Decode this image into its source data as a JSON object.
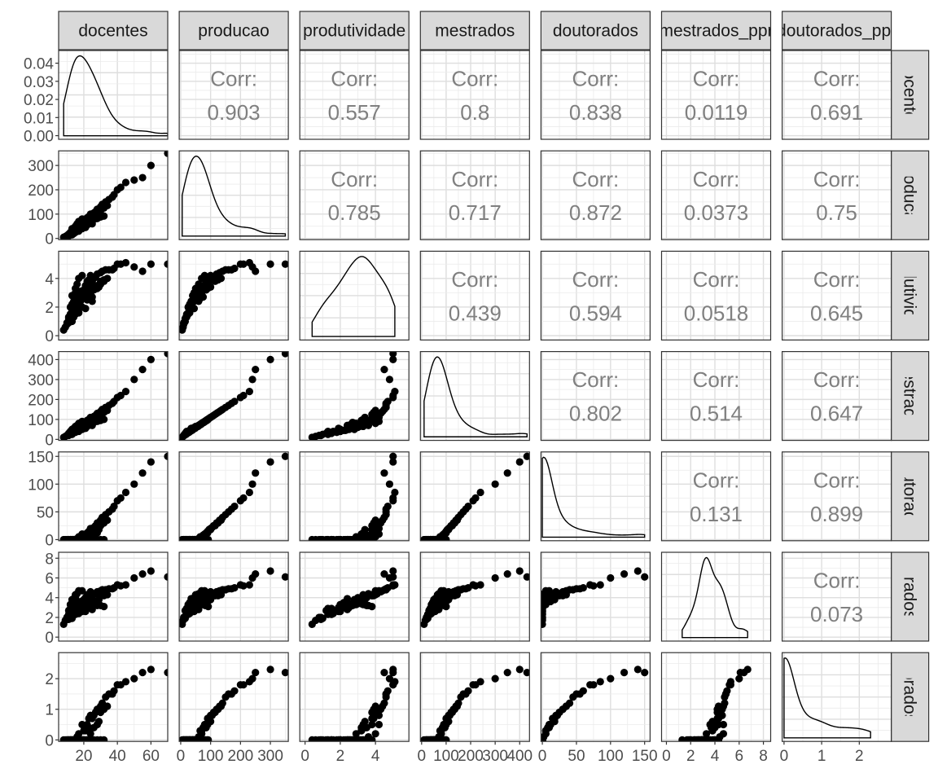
{
  "chart_data": {
    "type": "scatter-matrix",
    "variables": [
      "docentes",
      "producao",
      "produtividade",
      "mestrados",
      "doutorados",
      "mestrados_ppr",
      "doutorados_ppr"
    ],
    "corr_label": "Corr:",
    "correlations": [
      {
        "row": 0,
        "col": 1,
        "value": "0.903"
      },
      {
        "row": 0,
        "col": 2,
        "value": "0.557"
      },
      {
        "row": 0,
        "col": 3,
        "value": "0.8"
      },
      {
        "row": 0,
        "col": 4,
        "value": "0.838"
      },
      {
        "row": 0,
        "col": 5,
        "value": "0.0119"
      },
      {
        "row": 0,
        "col": 6,
        "value": "0.691"
      },
      {
        "row": 1,
        "col": 2,
        "value": "0.785"
      },
      {
        "row": 1,
        "col": 3,
        "value": "0.717"
      },
      {
        "row": 1,
        "col": 4,
        "value": "0.872"
      },
      {
        "row": 1,
        "col": 5,
        "value": "0.0373"
      },
      {
        "row": 1,
        "col": 6,
        "value": "0.75"
      },
      {
        "row": 2,
        "col": 3,
        "value": "0.439"
      },
      {
        "row": 2,
        "col": 4,
        "value": "0.594"
      },
      {
        "row": 2,
        "col": 5,
        "value": "0.0518"
      },
      {
        "row": 2,
        "col": 6,
        "value": "0.645"
      },
      {
        "row": 3,
        "col": 4,
        "value": "0.802"
      },
      {
        "row": 3,
        "col": 5,
        "value": "0.514"
      },
      {
        "row": 3,
        "col": 6,
        "value": "0.647"
      },
      {
        "row": 4,
        "col": 5,
        "value": "0.131"
      },
      {
        "row": 4,
        "col": 6,
        "value": "0.899"
      },
      {
        "row": 5,
        "col": 6,
        "value": "0.073"
      }
    ],
    "x_ticks": [
      [
        20,
        40,
        60
      ],
      [
        0,
        100,
        200,
        300
      ],
      [
        0,
        2,
        4
      ],
      [
        0,
        100,
        200,
        300,
        400
      ],
      [
        0,
        50,
        100,
        150
      ],
      [
        0,
        2,
        4,
        6,
        8
      ],
      [
        0,
        1,
        2
      ]
    ],
    "x_tick_labels": [
      [
        "20",
        "40",
        "60"
      ],
      [
        "0",
        "100",
        "200",
        "300"
      ],
      [
        "0",
        "2",
        "4"
      ],
      [
        "0",
        "100",
        "200",
        "300",
        "400"
      ],
      [
        "0",
        "50",
        "100",
        "150"
      ],
      [
        "0",
        "2",
        "4",
        "6",
        "8"
      ],
      [
        "0",
        "1",
        "2"
      ]
    ],
    "x_ranges": [
      [
        5,
        70
      ],
      [
        -5,
        360
      ],
      [
        -0.3,
        5.9
      ],
      [
        -5,
        440
      ],
      [
        -2,
        158
      ],
      [
        -0.4,
        8.6
      ],
      [
        -0.05,
        2.85
      ]
    ],
    "y_ticks": [
      [
        0,
        0.01,
        0.02,
        0.03,
        0.04
      ],
      [
        0,
        100,
        200,
        300
      ],
      [
        0,
        2,
        4
      ],
      [
        0,
        100,
        200,
        300,
        400
      ],
      [
        0,
        50,
        100,
        150
      ],
      [
        0,
        2,
        4,
        6,
        8
      ],
      [
        0,
        1,
        2
      ]
    ],
    "y_tick_labels": [
      [
        "0.00",
        "0.01",
        "0.02",
        "0.03",
        "0.04"
      ],
      [
        "0",
        "100",
        "200",
        "300"
      ],
      [
        "0",
        "2",
        "4"
      ],
      [
        "0",
        "100",
        "200",
        "300",
        "400"
      ],
      [
        "0",
        "50",
        "100",
        "150"
      ],
      [
        "0",
        "2",
        "4",
        "6",
        "8"
      ],
      [
        "0",
        "1",
        "2"
      ]
    ],
    "y_ranges": [
      [
        -0.002,
        0.047
      ],
      [
        -5,
        360
      ],
      [
        -0.3,
        5.9
      ],
      [
        -5,
        440
      ],
      [
        -2,
        158
      ],
      [
        -0.4,
        8.6
      ],
      [
        -0.05,
        2.85
      ]
    ],
    "data": {
      "docentes": [
        10,
        11,
        12,
        12,
        13,
        13,
        14,
        14,
        15,
        15,
        15,
        16,
        16,
        17,
        17,
        18,
        18,
        19,
        19,
        20,
        20,
        21,
        21,
        22,
        22,
        23,
        23,
        24,
        24,
        25,
        25,
        26,
        26,
        27,
        28,
        28,
        29,
        30,
        30,
        31,
        32,
        33,
        34,
        35,
        37,
        38,
        40,
        42,
        45,
        50,
        55,
        60,
        70,
        8,
        9,
        10,
        11,
        12,
        13,
        14,
        15,
        16,
        17,
        18,
        19,
        20,
        22,
        24,
        26,
        28,
        30,
        32,
        25,
        23,
        21,
        19,
        17,
        15,
        13,
        11
      ],
      "producao": [
        10,
        15,
        20,
        25,
        30,
        40,
        20,
        35,
        45,
        30,
        50,
        40,
        60,
        35,
        70,
        45,
        55,
        80,
        50,
        65,
        60,
        75,
        70,
        85,
        55,
        90,
        80,
        100,
        70,
        95,
        60,
        105,
        85,
        110,
        90,
        120,
        100,
        130,
        115,
        140,
        125,
        150,
        135,
        160,
        170,
        180,
        200,
        210,
        230,
        240,
        250,
        300,
        350,
        5,
        8,
        12,
        18,
        22,
        28,
        32,
        38,
        42,
        48,
        52,
        58,
        62,
        68,
        72,
        78,
        82,
        88,
        92,
        75,
        65,
        45,
        40,
        30,
        25,
        15,
        10
      ],
      "produtividade": [
        0.8,
        1.2,
        1.5,
        2.0,
        2.2,
        2.8,
        1.3,
        2.4,
        3.0,
        1.9,
        3.3,
        2.5,
        3.6,
        2.0,
        4.0,
        2.4,
        3.1,
        4.2,
        2.6,
        3.2,
        2.9,
        3.5,
        3.2,
        3.8,
        2.5,
        3.9,
        3.4,
        4.2,
        2.9,
        3.8,
        2.4,
        4.0,
        3.2,
        4.1,
        3.3,
        4.3,
        3.4,
        4.4,
        3.8,
        4.5,
        3.9,
        4.6,
        4.0,
        4.6,
        4.6,
        4.7,
        5.0,
        5.0,
        5.1,
        4.8,
        4.5,
        5.0,
        5.0,
        0.4,
        0.6,
        0.9,
        1.3,
        1.5,
        1.8,
        2.0,
        2.3,
        2.5,
        2.7,
        2.8,
        3.0,
        3.1,
        3.2,
        3.3,
        3.4,
        3.5,
        3.6,
        3.8,
        2.7,
        2.6,
        1.9,
        2.0,
        1.6,
        1.5,
        1.0,
        0.9
      ],
      "mestrados": [
        20,
        30,
        35,
        40,
        45,
        50,
        40,
        55,
        60,
        45,
        65,
        55,
        70,
        50,
        80,
        55,
        65,
        90,
        60,
        75,
        70,
        85,
        80,
        95,
        65,
        100,
        90,
        110,
        80,
        105,
        70,
        115,
        95,
        120,
        100,
        130,
        110,
        140,
        125,
        150,
        135,
        160,
        145,
        170,
        180,
        190,
        210,
        220,
        240,
        300,
        350,
        400,
        430,
        10,
        15,
        20,
        25,
        30,
        35,
        40,
        45,
        50,
        55,
        60,
        65,
        70,
        75,
        80,
        85,
        90,
        95,
        100,
        85,
        75,
        55,
        50,
        40,
        35,
        25,
        20
      ],
      "doutorados": [
        0,
        0,
        0,
        0,
        0,
        0,
        0,
        0,
        0,
        0,
        0,
        0,
        2,
        0,
        5,
        0,
        0,
        10,
        0,
        5,
        0,
        8,
        5,
        12,
        0,
        15,
        8,
        20,
        5,
        18,
        0,
        22,
        10,
        25,
        12,
        30,
        18,
        35,
        25,
        40,
        30,
        45,
        35,
        50,
        55,
        60,
        70,
        75,
        85,
        100,
        120,
        140,
        150,
        0,
        0,
        0,
        0,
        0,
        0,
        0,
        0,
        0,
        0,
        0,
        0,
        0,
        0,
        0,
        0,
        0,
        0,
        0,
        0,
        0,
        0,
        0,
        0,
        0,
        0,
        0
      ],
      "mestrados_ppr": [
        2.0,
        2.7,
        2.9,
        3.3,
        3.5,
        3.8,
        2.9,
        3.9,
        4.0,
        3.0,
        4.3,
        3.4,
        4.4,
        2.9,
        4.7,
        3.1,
        3.6,
        4.7,
        3.2,
        3.8,
        3.5,
        4.0,
        3.8,
        4.3,
        3.0,
        4.3,
        3.9,
        4.6,
        3.3,
        4.2,
        2.8,
        4.4,
        3.7,
        4.4,
        3.6,
        4.6,
        3.8,
        4.7,
        4.2,
        4.8,
        4.2,
        4.8,
        4.3,
        4.9,
        4.9,
        5.0,
        5.3,
        5.2,
        5.3,
        6.0,
        6.4,
        6.7,
        6.1,
        1.3,
        1.7,
        2.0,
        2.3,
        2.5,
        2.7,
        2.9,
        3.0,
        3.1,
        3.2,
        3.3,
        3.4,
        3.5,
        3.4,
        3.3,
        3.3,
        3.2,
        3.2,
        3.1,
        3.4,
        3.3,
        2.6,
        2.6,
        2.4,
        2.3,
        1.9,
        1.8
      ],
      "doutorados_ppr": [
        0,
        0,
        0,
        0,
        0,
        0,
        0,
        0,
        0,
        0,
        0,
        0,
        0.1,
        0,
        0.2,
        0,
        0,
        0.5,
        0,
        0.3,
        0,
        0.4,
        0.3,
        0.5,
        0,
        0.7,
        0.4,
        0.8,
        0.2,
        0.7,
        0,
        0.8,
        0.4,
        0.9,
        0.5,
        1.0,
        0.6,
        1.1,
        0.9,
        1.2,
        1.0,
        1.4,
        1.1,
        1.5,
        1.5,
        1.6,
        1.8,
        1.8,
        1.9,
        2.0,
        2.2,
        2.3,
        2.2,
        0,
        0,
        0,
        0,
        0,
        0,
        0,
        0,
        0,
        0,
        0,
        0,
        0,
        0,
        0,
        0,
        0,
        0,
        0,
        0,
        0,
        0,
        0,
        0,
        0,
        0,
        0
      ]
    }
  }
}
